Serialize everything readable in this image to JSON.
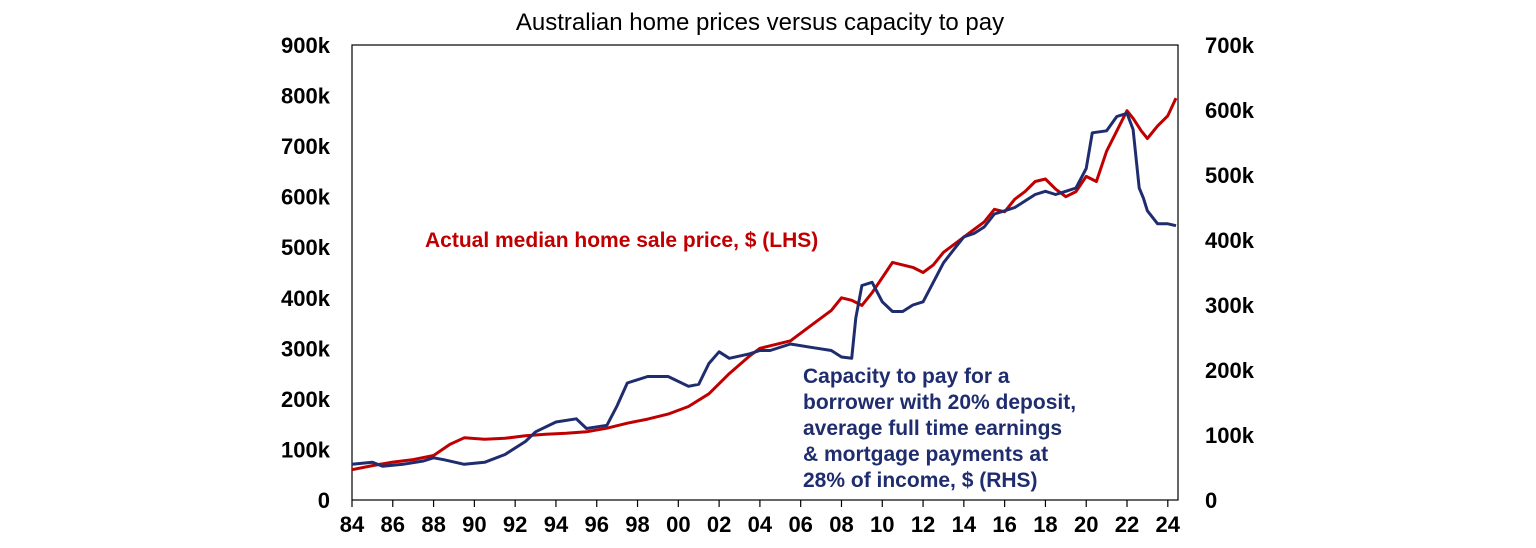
{
  "chart_data": {
    "type": "line",
    "title": "Australian home prices versus capacity to pay",
    "x_ticks": [
      "84",
      "86",
      "88",
      "90",
      "92",
      "94",
      "96",
      "98",
      "00",
      "02",
      "04",
      "06",
      "08",
      "10",
      "12",
      "14",
      "16",
      "18",
      "20",
      "22",
      "24"
    ],
    "x_tick_years": [
      1984,
      1986,
      1988,
      1990,
      1992,
      1994,
      1996,
      1998,
      2000,
      2002,
      2004,
      2006,
      2008,
      2010,
      2012,
      2014,
      2016,
      2018,
      2020,
      2022,
      2024
    ],
    "xlim": [
      1984,
      2024.5
    ],
    "y_left": {
      "ylim": [
        0,
        900000
      ],
      "ticks": [
        "0",
        "100k",
        "200k",
        "300k",
        "400k",
        "500k",
        "600k",
        "700k",
        "800k",
        "900k"
      ]
    },
    "y_right": {
      "ylim": [
        0,
        700000
      ],
      "ticks": [
        "0",
        "100k",
        "200k",
        "300k",
        "400k",
        "500k",
        "600k",
        "700k"
      ]
    },
    "grid": false,
    "legend": "inline annotations",
    "series": [
      {
        "name": "Actual median home sale price, $ (LHS)",
        "axis": "left",
        "color": "#c00000",
        "label_lines": [
          "Actual median home sale price, $ (LHS)"
        ],
        "points": [
          [
            1984.0,
            60000
          ],
          [
            1985.0,
            68000
          ],
          [
            1986.0,
            75000
          ],
          [
            1987.0,
            80000
          ],
          [
            1988.0,
            88000
          ],
          [
            1988.8,
            110000
          ],
          [
            1989.5,
            123000
          ],
          [
            1990.5,
            120000
          ],
          [
            1991.5,
            122000
          ],
          [
            1992.5,
            127000
          ],
          [
            1993.5,
            130000
          ],
          [
            1994.5,
            132000
          ],
          [
            1995.5,
            135000
          ],
          [
            1996.5,
            142000
          ],
          [
            1997.5,
            152000
          ],
          [
            1998.5,
            160000
          ],
          [
            1999.5,
            170000
          ],
          [
            2000.5,
            185000
          ],
          [
            2001.5,
            210000
          ],
          [
            2002.5,
            250000
          ],
          [
            2003.5,
            285000
          ],
          [
            2004.0,
            300000
          ],
          [
            2004.5,
            305000
          ],
          [
            2005.5,
            315000
          ],
          [
            2006.5,
            345000
          ],
          [
            2007.5,
            375000
          ],
          [
            2008.0,
            400000
          ],
          [
            2008.5,
            395000
          ],
          [
            2009.0,
            385000
          ],
          [
            2009.5,
            410000
          ],
          [
            2010.0,
            440000
          ],
          [
            2010.5,
            470000
          ],
          [
            2011.0,
            465000
          ],
          [
            2011.5,
            460000
          ],
          [
            2012.0,
            450000
          ],
          [
            2012.5,
            465000
          ],
          [
            2013.0,
            490000
          ],
          [
            2013.5,
            505000
          ],
          [
            2014.0,
            520000
          ],
          [
            2014.5,
            535000
          ],
          [
            2015.0,
            550000
          ],
          [
            2015.5,
            575000
          ],
          [
            2016.0,
            570000
          ],
          [
            2016.5,
            595000
          ],
          [
            2017.0,
            610000
          ],
          [
            2017.5,
            630000
          ],
          [
            2018.0,
            635000
          ],
          [
            2018.5,
            615000
          ],
          [
            2019.0,
            600000
          ],
          [
            2019.5,
            610000
          ],
          [
            2020.0,
            640000
          ],
          [
            2020.5,
            630000
          ],
          [
            2021.0,
            690000
          ],
          [
            2021.5,
            730000
          ],
          [
            2022.0,
            770000
          ],
          [
            2022.3,
            755000
          ],
          [
            2022.7,
            730000
          ],
          [
            2023.0,
            715000
          ],
          [
            2023.5,
            740000
          ],
          [
            2024.0,
            760000
          ],
          [
            2024.4,
            795000
          ]
        ]
      },
      {
        "name": "Capacity to pay for a borrower with 20% deposit, average full time earnings & mortgage payments at 28% of income, $ (RHS)",
        "axis": "right",
        "color": "#1f2d6e",
        "label_lines": [
          "Capacity to pay for a",
          "borrower with 20% deposit,",
          "average full time earnings",
          "& mortgage payments at",
          "28% of income, $ (RHS)"
        ],
        "points": [
          [
            1984.0,
            55000
          ],
          [
            1985.0,
            58000
          ],
          [
            1985.5,
            52000
          ],
          [
            1986.5,
            55000
          ],
          [
            1987.5,
            60000
          ],
          [
            1988.0,
            65000
          ],
          [
            1988.5,
            62000
          ],
          [
            1989.5,
            55000
          ],
          [
            1990.5,
            58000
          ],
          [
            1991.5,
            70000
          ],
          [
            1992.5,
            90000
          ],
          [
            1993.0,
            105000
          ],
          [
            1994.0,
            120000
          ],
          [
            1995.0,
            125000
          ],
          [
            1995.5,
            110000
          ],
          [
            1996.5,
            115000
          ],
          [
            1997.0,
            145000
          ],
          [
            1997.5,
            180000
          ],
          [
            1998.5,
            190000
          ],
          [
            1999.5,
            190000
          ],
          [
            2000.5,
            175000
          ],
          [
            2001.0,
            178000
          ],
          [
            2001.5,
            210000
          ],
          [
            2002.0,
            228000
          ],
          [
            2002.5,
            218000
          ],
          [
            2003.5,
            225000
          ],
          [
            2004.0,
            230000
          ],
          [
            2004.5,
            230000
          ],
          [
            2005.5,
            240000
          ],
          [
            2006.5,
            235000
          ],
          [
            2007.5,
            230000
          ],
          [
            2008.0,
            220000
          ],
          [
            2008.5,
            218000
          ],
          [
            2008.7,
            280000
          ],
          [
            2009.0,
            330000
          ],
          [
            2009.5,
            335000
          ],
          [
            2010.0,
            305000
          ],
          [
            2010.5,
            290000
          ],
          [
            2011.0,
            290000
          ],
          [
            2011.5,
            300000
          ],
          [
            2012.0,
            305000
          ],
          [
            2012.5,
            335000
          ],
          [
            2013.0,
            365000
          ],
          [
            2013.5,
            385000
          ],
          [
            2014.0,
            405000
          ],
          [
            2014.5,
            410000
          ],
          [
            2015.0,
            420000
          ],
          [
            2015.5,
            440000
          ],
          [
            2016.0,
            445000
          ],
          [
            2016.5,
            450000
          ],
          [
            2017.0,
            460000
          ],
          [
            2017.5,
            470000
          ],
          [
            2018.0,
            475000
          ],
          [
            2018.5,
            470000
          ],
          [
            2019.0,
            475000
          ],
          [
            2019.5,
            480000
          ],
          [
            2020.0,
            510000
          ],
          [
            2020.3,
            565000
          ],
          [
            2021.0,
            568000
          ],
          [
            2021.5,
            590000
          ],
          [
            2022.0,
            595000
          ],
          [
            2022.3,
            570000
          ],
          [
            2022.6,
            480000
          ],
          [
            2022.8,
            465000
          ],
          [
            2023.0,
            445000
          ],
          [
            2023.5,
            425000
          ],
          [
            2024.0,
            425000
          ],
          [
            2024.4,
            422000
          ]
        ]
      }
    ]
  }
}
